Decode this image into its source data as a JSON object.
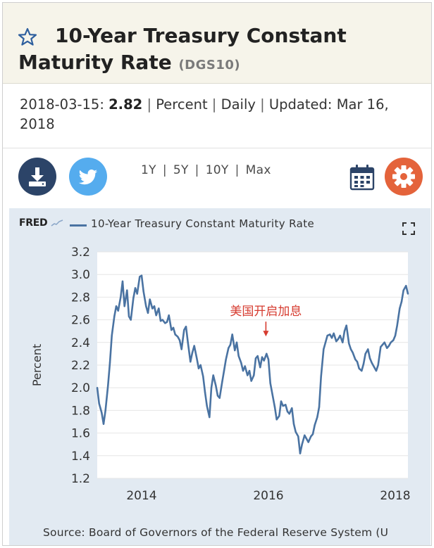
{
  "header": {
    "title": "10-Year Treasury Constant Maturity Rate",
    "series_id": "(DGS10)"
  },
  "meta": {
    "date": "2018-03-15:",
    "value": "2.82",
    "units": "Percent",
    "frequency": "Daily",
    "updated_label": "Updated:",
    "updated_date": "Mar 16, 2018",
    "separator": "|"
  },
  "toolbar": {
    "ranges": [
      "1Y",
      "5Y",
      "10Y",
      "Max"
    ],
    "icons": {
      "download": "download-icon",
      "twitter": "twitter-icon",
      "calendar": "calendar-icon",
      "settings": "gear-icon"
    }
  },
  "chart_header": {
    "logo": "FRED",
    "legend": "10-Year Treasury Constant Maturity Rate"
  },
  "source": "Source: Board of Governors of the Federal Reserve System (U",
  "colors": {
    "header_bg": "#f6f4ea",
    "panel_bg": "#e2eaf2",
    "series": "#4a73a2",
    "download_btn": "#2c4468",
    "twitter_btn": "#55acee",
    "settings_btn": "#e4633b",
    "annotation": "#d63b2f"
  },
  "chart_data": {
    "type": "line",
    "ylabel": "Percent",
    "ylim": [
      1.2,
      3.2
    ],
    "xlim": [
      2013.3,
      2018.2
    ],
    "yticks": [
      "1.2",
      "1.4",
      "1.6",
      "1.8",
      "2.0",
      "2.2",
      "2.4",
      "2.6",
      "2.8",
      "3.0",
      "3.2"
    ],
    "xticks": [
      "2014",
      "2016",
      "2018"
    ],
    "grid": "horizontal",
    "annotation": {
      "text": "美国开启加息",
      "x": 2015.96,
      "y": 2.36
    },
    "series": [
      {
        "name": "10-Year Treasury Constant Maturity Rate",
        "x": [
          2013.3,
          2013.33,
          2013.37,
          2013.4,
          2013.43,
          2013.47,
          2013.5,
          2013.53,
          2013.57,
          2013.6,
          2013.63,
          2013.67,
          2013.7,
          2013.73,
          2013.77,
          2013.8,
          2013.83,
          2013.87,
          2013.9,
          2013.93,
          2013.97,
          2014.0,
          2014.03,
          2014.07,
          2014.1,
          2014.13,
          2014.17,
          2014.2,
          2014.23,
          2014.27,
          2014.3,
          2014.33,
          2014.37,
          2014.4,
          2014.43,
          2014.47,
          2014.5,
          2014.53,
          2014.57,
          2014.6,
          2014.63,
          2014.67,
          2014.7,
          2014.73,
          2014.77,
          2014.8,
          2014.83,
          2014.87,
          2014.9,
          2014.93,
          2014.97,
          2015.0,
          2015.03,
          2015.07,
          2015.1,
          2015.13,
          2015.17,
          2015.2,
          2015.23,
          2015.27,
          2015.3,
          2015.33,
          2015.37,
          2015.4,
          2015.43,
          2015.47,
          2015.5,
          2015.53,
          2015.57,
          2015.6,
          2015.63,
          2015.67,
          2015.7,
          2015.73,
          2015.77,
          2015.8,
          2015.83,
          2015.87,
          2015.9,
          2015.93,
          2015.97,
          2016.0,
          2016.03,
          2016.07,
          2016.1,
          2016.13,
          2016.17,
          2016.2,
          2016.23,
          2016.27,
          2016.3,
          2016.33,
          2016.37,
          2016.4,
          2016.43,
          2016.47,
          2016.5,
          2016.53,
          2016.57,
          2016.6,
          2016.63,
          2016.67,
          2016.7,
          2016.73,
          2016.77,
          2016.8,
          2016.83,
          2016.87,
          2016.9,
          2016.93,
          2016.97,
          2017.0,
          2017.03,
          2017.07,
          2017.1,
          2017.13,
          2017.17,
          2017.2,
          2017.23,
          2017.27,
          2017.3,
          2017.33,
          2017.37,
          2017.4,
          2017.43,
          2017.47,
          2017.5,
          2017.53,
          2017.57,
          2017.6,
          2017.63,
          2017.67,
          2017.7,
          2017.73,
          2017.77,
          2017.8,
          2017.83,
          2017.87,
          2017.9,
          2017.93,
          2017.97,
          2018.0,
          2018.03,
          2018.07,
          2018.1,
          2018.13,
          2018.17,
          2018.2
        ],
        "values": [
          2.0,
          1.86,
          1.78,
          1.68,
          1.8,
          2.02,
          2.22,
          2.46,
          2.63,
          2.72,
          2.68,
          2.8,
          2.94,
          2.72,
          2.86,
          2.63,
          2.6,
          2.79,
          2.88,
          2.83,
          2.98,
          2.99,
          2.85,
          2.72,
          2.66,
          2.78,
          2.7,
          2.72,
          2.64,
          2.7,
          2.59,
          2.6,
          2.57,
          2.58,
          2.64,
          2.51,
          2.53,
          2.47,
          2.45,
          2.42,
          2.34,
          2.51,
          2.54,
          2.4,
          2.23,
          2.31,
          2.37,
          2.26,
          2.17,
          2.2,
          2.1,
          1.96,
          1.84,
          1.74,
          2.0,
          2.11,
          2.02,
          1.93,
          1.91,
          2.05,
          2.15,
          2.25,
          2.35,
          2.38,
          2.47,
          2.33,
          2.4,
          2.28,
          2.22,
          2.15,
          2.19,
          2.11,
          2.15,
          2.06,
          2.11,
          2.26,
          2.28,
          2.18,
          2.27,
          2.24,
          2.3,
          2.25,
          2.04,
          1.92,
          1.83,
          1.72,
          1.75,
          1.88,
          1.84,
          1.85,
          1.79,
          1.77,
          1.82,
          1.68,
          1.61,
          1.57,
          1.42,
          1.5,
          1.58,
          1.55,
          1.52,
          1.57,
          1.59,
          1.67,
          1.74,
          1.83,
          2.1,
          2.34,
          2.4,
          2.46,
          2.47,
          2.44,
          2.48,
          2.41,
          2.43,
          2.46,
          2.4,
          2.5,
          2.55,
          2.39,
          2.34,
          2.31,
          2.25,
          2.23,
          2.17,
          2.15,
          2.21,
          2.3,
          2.34,
          2.26,
          2.22,
          2.18,
          2.15,
          2.2,
          2.36,
          2.38,
          2.4,
          2.35,
          2.37,
          2.4,
          2.42,
          2.46,
          2.55,
          2.7,
          2.76,
          2.86,
          2.9,
          2.83
        ]
      }
    ]
  }
}
